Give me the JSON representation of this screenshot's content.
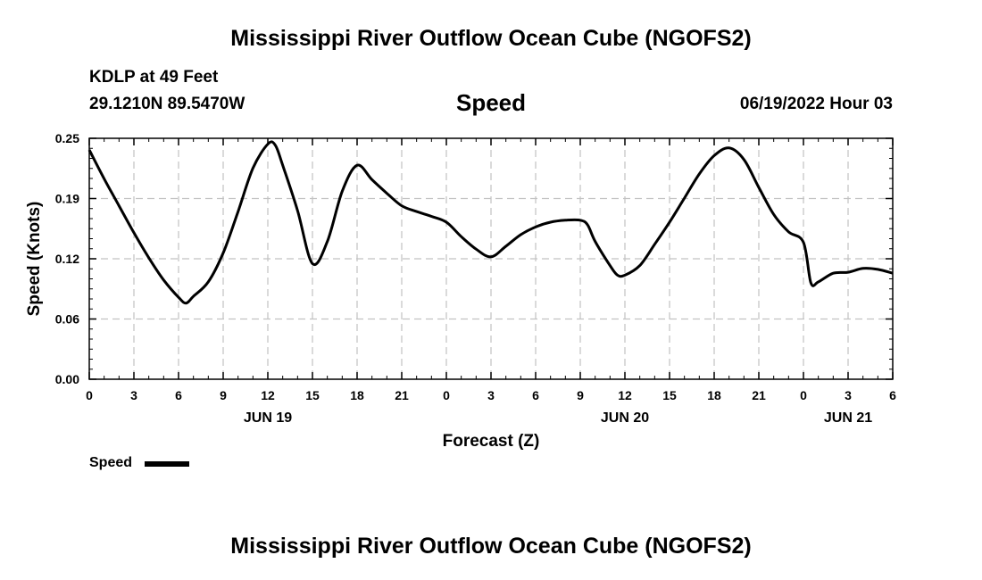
{
  "header": {
    "title": "Mississippi River Outflow Ocean Cube (NGOFS2)",
    "station": "KDLP at 49 Feet",
    "coords": "29.1210N  89.5470W",
    "variable": "Speed",
    "datetime": "06/19/2022 Hour 03"
  },
  "footer": {
    "title": "Mississippi River Outflow Ocean Cube (NGOFS2)"
  },
  "legend": {
    "label": "Speed"
  },
  "chart_data": {
    "type": "line",
    "title": "Speed",
    "xlabel": "Forecast (Z)",
    "ylabel": "Speed (Knots)",
    "ylim": [
      0,
      0.25
    ],
    "xlim": [
      0,
      54
    ],
    "y_ticks": [
      "0.00",
      "0.06",
      "0.12",
      "0.19",
      "0.25"
    ],
    "y_tick_values": [
      0,
      0.0625,
      0.125,
      0.1875,
      0.25
    ],
    "x_ticks": [
      0,
      3,
      6,
      9,
      12,
      15,
      18,
      21,
      24,
      27,
      30,
      33,
      36,
      39,
      42,
      45,
      48,
      51,
      54
    ],
    "x_tick_labels": [
      "0",
      "3",
      "6",
      "9",
      "12",
      "15",
      "18",
      "21",
      "0",
      "3",
      "6",
      "9",
      "12",
      "15",
      "18",
      "21",
      "0",
      "3",
      "6"
    ],
    "date_labels": [
      {
        "x": 12,
        "label": "JUN 19"
      },
      {
        "x": 36,
        "label": "JUN 20"
      },
      {
        "x": 51,
        "label": "JUN 21"
      }
    ],
    "grid": true,
    "legend_position": "bottom-left",
    "series": [
      {
        "name": "Speed",
        "color": "#000000",
        "x": [
          0,
          1,
          2,
          3,
          4,
          5,
          6,
          6.5,
          7,
          8,
          9,
          10,
          11,
          12,
          12.5,
          13,
          14,
          15,
          16,
          17,
          18,
          19,
          20,
          21,
          22,
          23,
          24,
          25,
          26,
          27,
          28,
          29,
          30,
          31,
          32,
          33,
          33.5,
          34,
          35,
          35.5,
          36,
          37,
          38,
          39,
          40,
          41,
          42,
          43,
          44,
          45,
          46,
          47,
          48,
          48.5,
          49,
          50,
          51,
          52,
          53,
          54
        ],
        "y": [
          0.238,
          0.208,
          0.18,
          0.152,
          0.126,
          0.103,
          0.085,
          0.079,
          0.086,
          0.101,
          0.131,
          0.174,
          0.219,
          0.244,
          0.243,
          0.222,
          0.175,
          0.12,
          0.143,
          0.195,
          0.222,
          0.207,
          0.193,
          0.18,
          0.174,
          0.169,
          0.163,
          0.148,
          0.135,
          0.127,
          0.138,
          0.15,
          0.158,
          0.163,
          0.165,
          0.165,
          0.16,
          0.143,
          0.118,
          0.108,
          0.108,
          0.118,
          0.14,
          0.163,
          0.188,
          0.213,
          0.232,
          0.24,
          0.228,
          0.199,
          0.171,
          0.153,
          0.142,
          0.1,
          0.101,
          0.11,
          0.111,
          0.115,
          0.114,
          0.11
        ]
      }
    ]
  }
}
